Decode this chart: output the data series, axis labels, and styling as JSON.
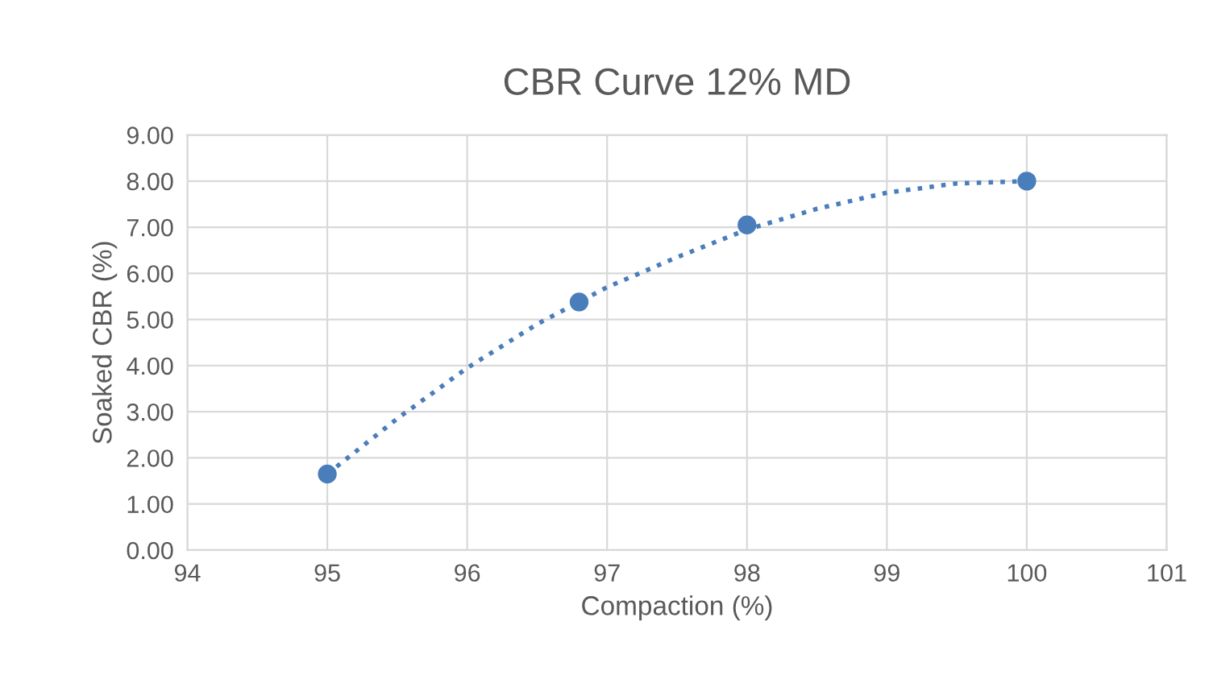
{
  "chart_data": {
    "type": "scatter",
    "title": "CBR Curve 12% MD",
    "xlabel": "Compaction (%)",
    "ylabel": "Soaked CBR (%)",
    "series": [
      {
        "color": "#4a7ebb",
        "x": [
          95,
          96.8,
          98,
          100
        ],
        "values": [
          1.65,
          5.38,
          7.05,
          8.0
        ],
        "marker": "circle"
      },
      {
        "type": "line",
        "color": "#4a7ebb",
        "line_style": "dotted",
        "marker": "none",
        "x": [
          95,
          95.5,
          96,
          96.5,
          97,
          97.5,
          98,
          98.5,
          99,
          99.5,
          100
        ],
        "values": [
          1.65,
          2.85,
          3.95,
          4.9,
          5.7,
          6.35,
          6.95,
          7.4,
          7.75,
          7.95,
          8.0
        ]
      }
    ],
    "xlim": [
      94,
      101
    ],
    "xticks": [
      94,
      95,
      96,
      97,
      98,
      99,
      100,
      101
    ],
    "ylim": [
      0,
      9
    ],
    "yticks": [
      {
        "value": 0,
        "label": "0.00"
      },
      {
        "value": 1,
        "label": "1.00"
      },
      {
        "value": 2,
        "label": "2.00"
      },
      {
        "value": 3,
        "label": "3.00"
      },
      {
        "value": 4,
        "label": "4.00"
      },
      {
        "value": 5,
        "label": "5.00"
      },
      {
        "value": 6,
        "label": "6.00"
      },
      {
        "value": 7,
        "label": "7.00"
      },
      {
        "value": 8,
        "label": "8.00"
      },
      {
        "value": 9,
        "label": "9.00"
      }
    ],
    "grid": true
  }
}
